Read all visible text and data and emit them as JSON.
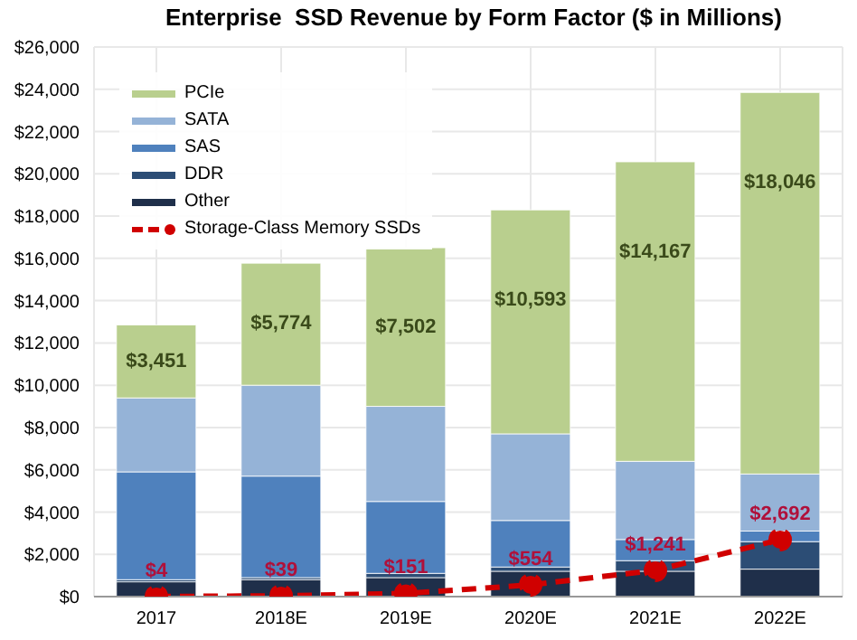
{
  "chart_data": {
    "type": "bar",
    "title": "Enterprise  SSD Revenue by Form Factor ($ in Millions)",
    "categories": [
      "2017",
      "2018E",
      "2019E",
      "2020E",
      "2021E",
      "2022E"
    ],
    "stacked": true,
    "series": [
      {
        "name": "Other",
        "color": "#1f2f4a",
        "values": [
          700,
          800,
          900,
          1200,
          1200,
          1300
        ]
      },
      {
        "name": "DDR",
        "color": "#2c4d75",
        "values": [
          100,
          100,
          200,
          200,
          500,
          1300
        ]
      },
      {
        "name": "SAS",
        "color": "#4f81bd",
        "values": [
          5100,
          4800,
          3400,
          2200,
          1000,
          500
        ]
      },
      {
        "name": "SATA",
        "color": "#95b3d7",
        "values": [
          3500,
          4300,
          4500,
          4100,
          3700,
          2700
        ]
      },
      {
        "name": "PCIe",
        "color": "#b9cf8e",
        "values": [
          3451,
          5774,
          7502,
          10593,
          14167,
          18046
        ],
        "value_labels": [
          "$3,451",
          "$5,774",
          "$7,502",
          "$10,593",
          "$14,167",
          "$18,046"
        ]
      },
      {
        "name": "Storage-Class Memory SSDs",
        "type": "line",
        "color": "#d00000",
        "marker": "circle",
        "line_style": "dashed",
        "values": [
          4,
          39,
          151,
          554,
          1241,
          2692
        ],
        "value_labels": [
          "$4",
          "$39",
          "$151",
          "$554",
          "$1,241",
          "$2,692"
        ]
      }
    ],
    "ylim": [
      0,
      26000
    ],
    "yticks": [
      {
        "value": 0,
        "label": "$0"
      },
      {
        "value": 2000,
        "label": "$2,000"
      },
      {
        "value": 4000,
        "label": "$4,000"
      },
      {
        "value": 6000,
        "label": "$6,000"
      },
      {
        "value": 8000,
        "label": "$8,000"
      },
      {
        "value": 10000,
        "label": "$10,000"
      },
      {
        "value": 12000,
        "label": "$12,000"
      },
      {
        "value": 14000,
        "label": "$14,000"
      },
      {
        "value": 16000,
        "label": "$16,000"
      },
      {
        "value": 18000,
        "label": "$18,000"
      },
      {
        "value": 20000,
        "label": "$20,000"
      },
      {
        "value": 22000,
        "label": "$22,000"
      },
      {
        "value": 24000,
        "label": "$24,000"
      },
      {
        "value": 26000,
        "label": "$26,000"
      }
    ],
    "grid": true,
    "legend": "top left"
  }
}
